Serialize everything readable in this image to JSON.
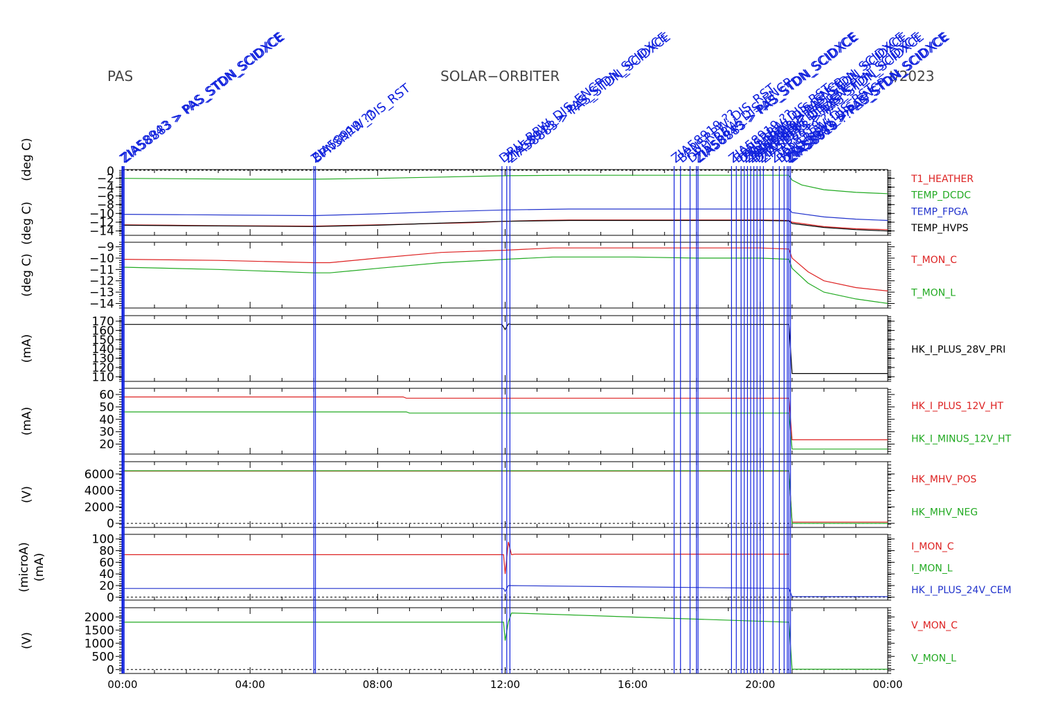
{
  "header": {
    "instrument": "PAS",
    "mission": "SOLAR−ORBITER",
    "date_partial": "t/2023"
  },
  "colors": {
    "red": "#dd2222",
    "green": "#22aa22",
    "blue": "#2233cc",
    "black": "#000000",
    "event": "#1122dd"
  },
  "chart_data": {
    "type": "line",
    "x_axis": {
      "ticks": [
        "00:00",
        "04:00",
        "08:00",
        "12:00",
        "16:00",
        "20:00",
        "00:00"
      ],
      "range_hours": [
        0,
        24
      ]
    },
    "events": {
      "label_examples": [
        "ZIA58943 > PAS_STDN_SCIDXCE",
        "ZIA58883 > PAS_STDN_SCIDXCE",
        "ZIA58919 ??",
        "BPNSRPW_DIS_RST",
        "DRU_RPW_DIS_ENCP"
      ],
      "times_h": [
        0.0,
        0.05,
        6.0,
        6.05,
        11.9,
        12.05,
        12.15,
        17.3,
        17.5,
        17.8,
        18.0,
        18.05,
        19.1,
        19.25,
        19.4,
        19.5,
        19.6,
        19.7,
        19.8,
        19.9,
        20.0,
        20.1,
        20.4,
        20.6,
        20.75,
        20.85,
        20.9,
        20.95
      ]
    },
    "panels": [
      {
        "ylabel": "(deg C)",
        "ylabel2": "(deg C)",
        "yticks": [
          "−2",
          "−4",
          "−6",
          "−8",
          "−10",
          "−12",
          "−14"
        ],
        "ytick_values": [
          -2,
          -4,
          -6,
          -8,
          -10,
          -12,
          -14
        ],
        "ylim": [
          -15,
          0
        ],
        "extra_tick": "0",
        "zero_line": true,
        "series": [
          {
            "name": "T1_HEATHER",
            "color": "red",
            "x": [
              0,
              1.5,
              3,
              6,
              8,
              11,
              12,
              13,
              14,
              16,
              18,
              20,
              20.9,
              21,
              22,
              23,
              24
            ],
            "y": [
              -12.6,
              -12.7,
              -12.8,
              -12.9,
              -12.6,
              -12.1,
              -11.8,
              -11.6,
              -11.5,
              -11.5,
              -11.5,
              -11.5,
              -11.6,
              -12.0,
              -13.0,
              -13.5,
              -13.7
            ]
          },
          {
            "name": "TEMP_DCDC",
            "color": "green",
            "x": [
              0,
              2,
              4,
              6,
              8,
              10,
              12,
              14,
              16,
              18,
              20,
              20.9,
              21,
              21.3,
              22,
              23,
              24
            ],
            "y": [
              -2.0,
              -2.1,
              -2.2,
              -2.2,
              -2.0,
              -1.7,
              -1.4,
              -1.3,
              -1.3,
              -1.3,
              -1.3,
              -1.3,
              -2.4,
              -3.5,
              -4.6,
              -5.2,
              -5.5
            ]
          },
          {
            "name": "TEMP_FPGA",
            "color": "blue",
            "x": [
              0,
              2,
              4,
              6,
              8,
              10,
              12,
              14,
              16,
              18,
              20,
              20.9,
              21,
              22,
              23,
              24
            ],
            "y": [
              -10.2,
              -10.3,
              -10.4,
              -10.5,
              -10.1,
              -9.6,
              -9.2,
              -9.0,
              -9.0,
              -9.0,
              -9.0,
              -9.0,
              -9.8,
              -10.8,
              -11.3,
              -11.6
            ]
          },
          {
            "name": "TEMP_HVPS",
            "color": "black",
            "x": [
              0,
              2,
              4,
              6,
              8,
              10,
              12,
              14,
              16,
              18,
              20,
              20.9,
              21,
              22,
              23,
              24
            ],
            "y": [
              -12.7,
              -12.8,
              -12.9,
              -13.0,
              -12.7,
              -12.2,
              -11.8,
              -11.6,
              -11.6,
              -11.6,
              -11.6,
              -11.7,
              -12.3,
              -13.2,
              -13.7,
              -14.0
            ]
          }
        ]
      },
      {
        "ylabel": "(deg C)",
        "yticks": [
          "−9",
          "−10",
          "−11",
          "−12",
          "−13",
          "−14"
        ],
        "ytick_values": [
          -9,
          -10,
          -11,
          -12,
          -13,
          -14
        ],
        "ylim": [
          -14.4,
          -8.6
        ],
        "series": [
          {
            "name": "T_MON_C",
            "color": "red",
            "x": [
              0,
              3,
              6,
              6.5,
              8,
              10,
              12,
              13.5,
              16,
              18,
              20,
              20.9,
              21,
              21.5,
              22,
              23,
              24
            ],
            "y": [
              -10.1,
              -10.2,
              -10.4,
              -10.4,
              -10.0,
              -9.5,
              -9.3,
              -9.1,
              -9.1,
              -9.1,
              -9.1,
              -9.2,
              -10.0,
              -11.2,
              -12.0,
              -12.6,
              -12.9
            ]
          },
          {
            "name": "T_MON_L",
            "color": "green",
            "x": [
              0,
              3,
              6,
              6.5,
              8,
              10,
              12,
              13.5,
              16,
              18,
              20,
              20.9,
              21,
              21.5,
              22,
              23,
              24
            ],
            "y": [
              -10.8,
              -11.0,
              -11.3,
              -11.3,
              -10.9,
              -10.4,
              -10.1,
              -9.9,
              -9.9,
              -10.0,
              -10.0,
              -10.1,
              -10.9,
              -12.2,
              -13.0,
              -13.6,
              -14.0
            ]
          }
        ]
      },
      {
        "ylabel": "(mA)",
        "yticks": [
          "170",
          "160",
          "150",
          "140",
          "130",
          "120",
          "110"
        ],
        "ytick_values": [
          170,
          160,
          150,
          140,
          130,
          120,
          110
        ],
        "ylim": [
          105,
          176
        ],
        "series": [
          {
            "name": "HK_I_PLUS_28V_PRI",
            "color": "black",
            "x": [
              0,
              11.9,
              12.0,
              12.1,
              12.2,
              20.9,
              21.0,
              24
            ],
            "y": [
              166.5,
              166.5,
              161,
              167,
              166.5,
              166.5,
              113.5,
              113.5
            ]
          }
        ]
      },
      {
        "ylabel": "(mA)",
        "yticks": [
          "60",
          "50",
          "40",
          "30",
          "20"
        ],
        "ytick_values": [
          60,
          50,
          40,
          30,
          20
        ],
        "ylim": [
          12,
          65
        ],
        "series": [
          {
            "name": "HK_I_PLUS_12V_HT",
            "color": "red",
            "x": [
              0,
              8.8,
              8.9,
              20.9,
              21.0,
              24
            ],
            "y": [
              58,
              58,
              57,
              57,
              23.5,
              23.5
            ]
          },
          {
            "name": "HK_I_MINUS_12V_HT",
            "color": "green",
            "x": [
              0,
              8.9,
              9.0,
              20.9,
              21.0,
              24
            ],
            "y": [
              46,
              46,
              45,
              45,
              16,
              16
            ]
          }
        ]
      },
      {
        "ylabel": "(V)",
        "yticks": [
          "6000",
          "4000",
          "2000",
          "0"
        ],
        "ytick_values": [
          6000,
          4000,
          2000,
          0
        ],
        "ylim": [
          -500,
          7500
        ],
        "zero_line": true,
        "series": [
          {
            "name": "HK_MHV_POS",
            "color": "red",
            "x": [
              0,
              20.9,
              21.0,
              24
            ],
            "y": [
              6350,
              6350,
              150,
              150
            ]
          },
          {
            "name": "HK_MHV_NEG",
            "color": "green",
            "x": [
              0,
              20.9,
              21.0,
              24
            ],
            "y": [
              6400,
              6400,
              0,
              0
            ]
          }
        ]
      },
      {
        "ylabel": "(microA)",
        "ylabel2": "(mA)",
        "yticks": [
          "100",
          "80",
          "60",
          "40",
          "20",
          "0"
        ],
        "ytick_values": [
          100,
          80,
          60,
          40,
          20,
          0
        ],
        "ylim": [
          -5,
          108
        ],
        "zero_line": true,
        "series": [
          {
            "name": "I_MON_C",
            "color": "red",
            "x": [
              0,
              11.95,
              12.0,
              12.1,
              12.2,
              12.3,
              20.9
            ],
            "y": [
              73,
              73,
              40,
              95,
              73,
              74,
              74
            ]
          },
          {
            "name": "I_MON_L",
            "color": "green",
            "x": [
              0,
              20.9
            ],
            "y": [
              null,
              null
            ]
          },
          {
            "name": "HK_I_PLUS_24V_CEM",
            "color": "blue",
            "x": [
              0,
              11.95,
              12.0,
              12.1,
              20.9,
              21.0,
              24
            ],
            "y": [
              15,
              15,
              10,
              20,
              15,
              1,
              1
            ]
          }
        ]
      },
      {
        "ylabel": "(V)",
        "yticks": [
          "2000",
          "1500",
          "1000",
          "500",
          "0"
        ],
        "ytick_values": [
          2000,
          1500,
          1000,
          500,
          0
        ],
        "ylim": [
          -150,
          2350
        ],
        "zero_line": true,
        "series": [
          {
            "name": "V_MON_C",
            "color": "red",
            "x": [
              0,
              20.9
            ],
            "y": [
              null,
              null
            ]
          },
          {
            "name": "V_MON_L",
            "color": "green",
            "x": [
              0,
              11.95,
              12.0,
              12.1,
              12.2,
              20.9,
              21.0,
              24
            ],
            "y": [
              1800,
              1800,
              1100,
              1800,
              2150,
              1800,
              10,
              10
            ]
          }
        ]
      }
    ]
  }
}
